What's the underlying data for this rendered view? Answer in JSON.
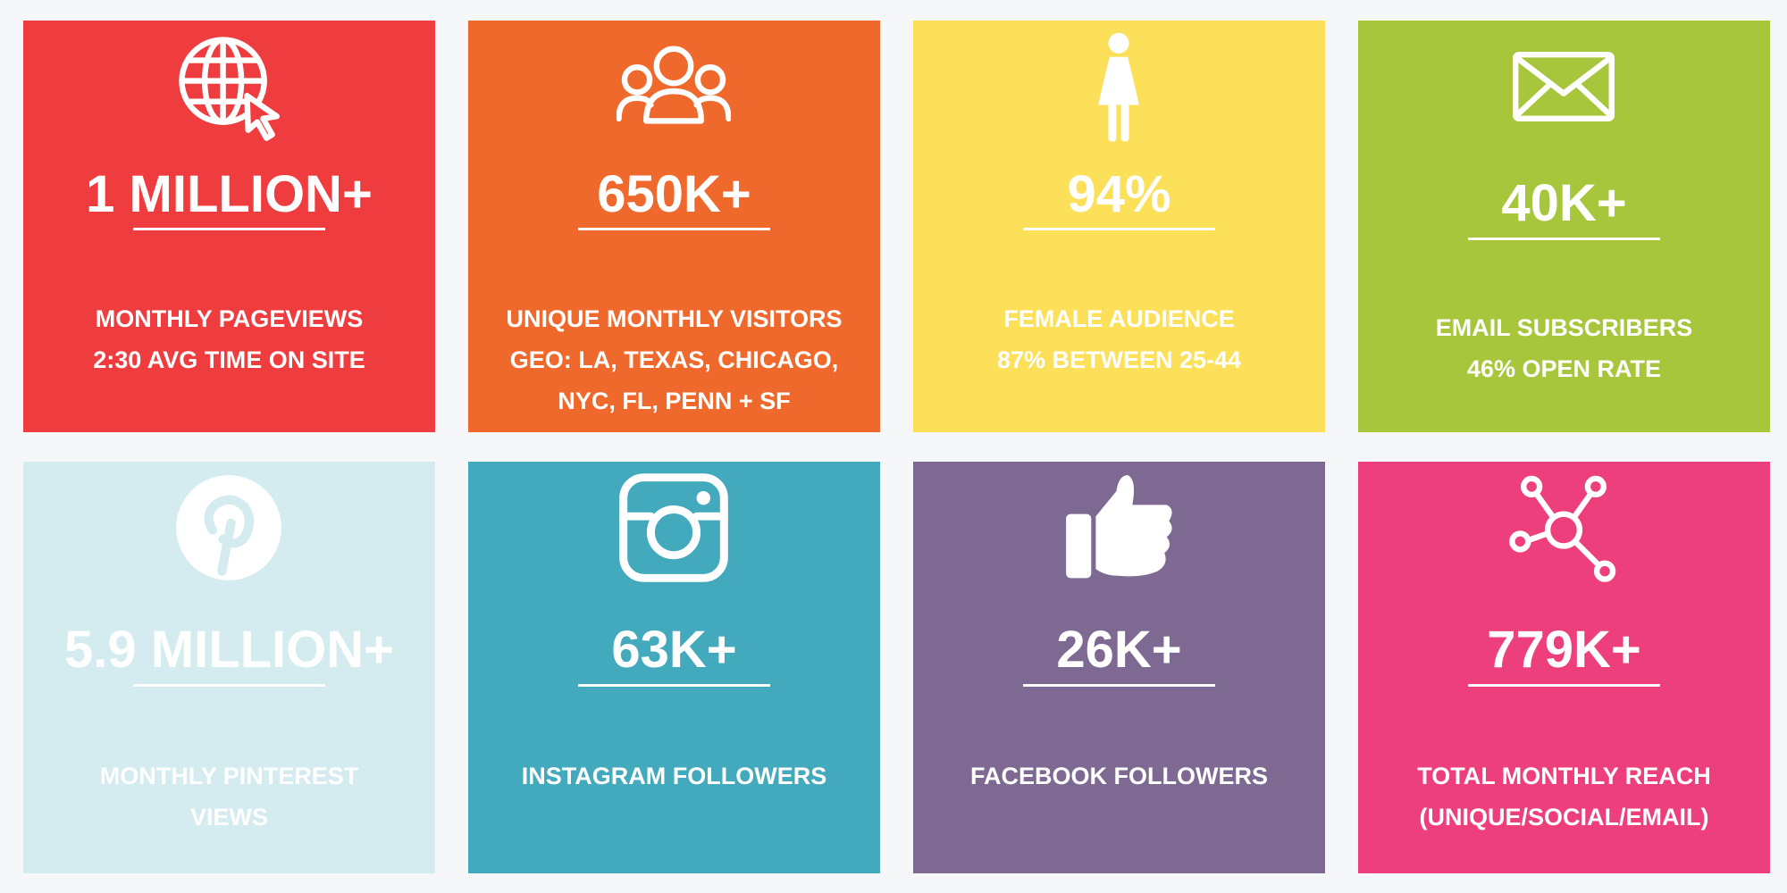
{
  "tiles": [
    {
      "stat": "1 MILLION+",
      "lines": [
        "MONTHLY PAGEVIEWS",
        "2:30 AVG TIME ON SITE"
      ]
    },
    {
      "stat": "650K+",
      "lines": [
        "UNIQUE MONTHLY VISITORS",
        "GEO: LA, TEXAS, CHICAGO,",
        "NYC, FL, PENN + SF"
      ]
    },
    {
      "stat": "94%",
      "lines": [
        "FEMALE AUDIENCE",
        "87% BETWEEN 25-44"
      ]
    },
    {
      "stat": "40K+",
      "lines": [
        "EMAIL SUBSCRIBERS",
        "46% OPEN RATE"
      ]
    },
    {
      "stat": "5.9 MILLION+",
      "lines": [
        "MONTHLY PINTEREST",
        "VIEWS"
      ]
    },
    {
      "stat": "63K+",
      "lines": [
        "INSTAGRAM FOLLOWERS"
      ]
    },
    {
      "stat": "26K+",
      "lines": [
        "FACEBOOK FOLLOWERS"
      ]
    },
    {
      "stat": "779K+",
      "lines": [
        "TOTAL MONTHLY REACH",
        "(UNIQUE/SOCIAL/EMAIL)"
      ]
    }
  ]
}
